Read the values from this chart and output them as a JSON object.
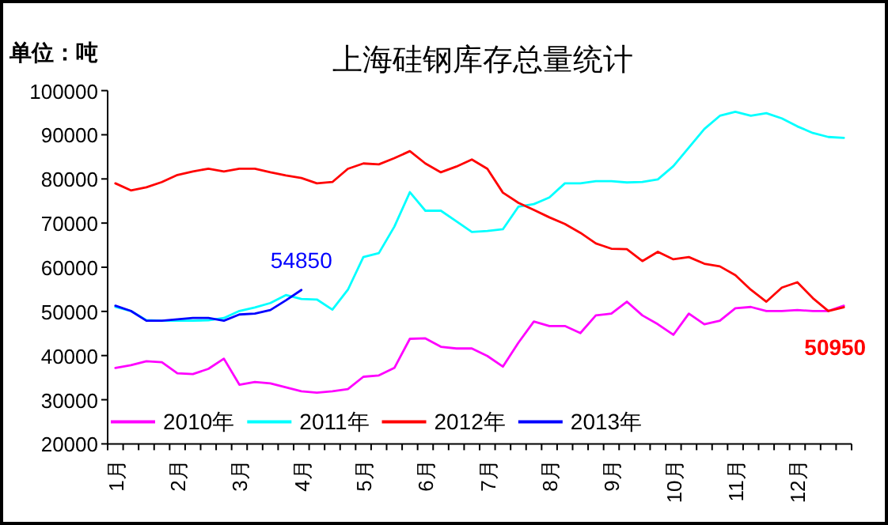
{
  "chart_data": {
    "type": "line",
    "title": "上海硅钢库存总量统计",
    "ylabel": "单位：吨",
    "categories": [
      "1月",
      null,
      null,
      null,
      "2月",
      null,
      null,
      null,
      "3月",
      null,
      null,
      null,
      "4月",
      null,
      null,
      null,
      "5月",
      null,
      null,
      null,
      "6月",
      null,
      null,
      null,
      "7月",
      null,
      null,
      null,
      "8月",
      null,
      null,
      null,
      "9月",
      null,
      null,
      null,
      "10月",
      null,
      null,
      null,
      "11月",
      null,
      null,
      null,
      "12月",
      null,
      null,
      null
    ],
    "ylim": [
      20000,
      100000
    ],
    "yticks": [
      20000,
      30000,
      40000,
      50000,
      60000,
      70000,
      80000,
      90000,
      100000
    ],
    "grid": false,
    "legend": "bottom left",
    "marker": "none",
    "line_style": "solid",
    "series": [
      {
        "name": "2010年",
        "color": "#ff00ff",
        "values": [
          37200,
          37800,
          38700,
          38500,
          36000,
          35800,
          37000,
          39300,
          33400,
          34000,
          33700,
          32800,
          31900,
          31600,
          31900,
          32400,
          35200,
          35500,
          37200,
          43800,
          43900,
          42000,
          41600,
          41600,
          39900,
          37500,
          42900,
          47700,
          46700,
          46700,
          45100,
          49100,
          49500,
          52200,
          49100,
          47100,
          44700,
          49500,
          47100,
          47900,
          50700,
          51000,
          50100,
          50100,
          50300,
          50100,
          50100,
          51300
        ]
      },
      {
        "name": "2011年",
        "color": "#00ffff",
        "values": [
          51000,
          50100,
          48000,
          47900,
          47900,
          47900,
          48000,
          48500,
          50100,
          50900,
          51900,
          53700,
          52800,
          52700,
          50400,
          54900,
          62300,
          63200,
          69200,
          77000,
          72800,
          72800,
          70400,
          68000,
          68200,
          68600,
          73700,
          74300,
          75800,
          79000,
          79000,
          79500,
          79500,
          79200,
          79300,
          79900,
          82900,
          87100,
          91300,
          94300,
          95200,
          94300,
          94900,
          93700,
          91900,
          90400,
          89500,
          89300
        ]
      },
      {
        "name": "2012年",
        "color": "#ff0000",
        "values": [
          79000,
          77400,
          78100,
          79300,
          80900,
          81700,
          82300,
          81700,
          82300,
          82300,
          81500,
          80800,
          80200,
          79000,
          79300,
          82300,
          83500,
          83300,
          84700,
          86300,
          83500,
          81500,
          82800,
          84400,
          82300,
          76900,
          74600,
          73000,
          71300,
          69800,
          67800,
          65400,
          64200,
          64100,
          61400,
          63500,
          61800,
          62300,
          60800,
          60200,
          58200,
          54900,
          52200,
          55400,
          56600,
          53000,
          50100,
          50950
        ],
        "value_labels": [
          null,
          null,
          null,
          null,
          null,
          null,
          null,
          null,
          null,
          null,
          null,
          null,
          null,
          null,
          null,
          null,
          null,
          null,
          null,
          null,
          null,
          null,
          null,
          null,
          null,
          null,
          null,
          null,
          null,
          null,
          null,
          null,
          null,
          null,
          null,
          null,
          null,
          null,
          null,
          null,
          null,
          null,
          null,
          null,
          null,
          null,
          null,
          "50950"
        ]
      },
      {
        "name": "2013年",
        "color": "#0000ff",
        "values": [
          51300,
          50100,
          47900,
          47900,
          48200,
          48500,
          48500,
          47900,
          49300,
          49500,
          50300,
          52500,
          54850,
          null,
          null,
          null,
          null,
          null,
          null,
          null,
          null,
          null,
          null,
          null,
          null,
          null,
          null,
          null,
          null,
          null,
          null,
          null,
          null,
          null,
          null,
          null,
          null,
          null,
          null,
          null,
          null,
          null,
          null,
          null,
          null,
          null,
          null,
          null
        ],
        "value_labels": [
          null,
          null,
          null,
          null,
          null,
          null,
          null,
          null,
          null,
          null,
          null,
          null,
          "54850",
          null,
          null,
          null,
          null,
          null,
          null,
          null,
          null,
          null,
          null,
          null,
          null,
          null,
          null,
          null,
          null,
          null,
          null,
          null,
          null,
          null,
          null,
          null,
          null,
          null,
          null,
          null,
          null,
          null,
          null,
          null,
          null,
          null,
          null,
          null
        ]
      }
    ]
  }
}
